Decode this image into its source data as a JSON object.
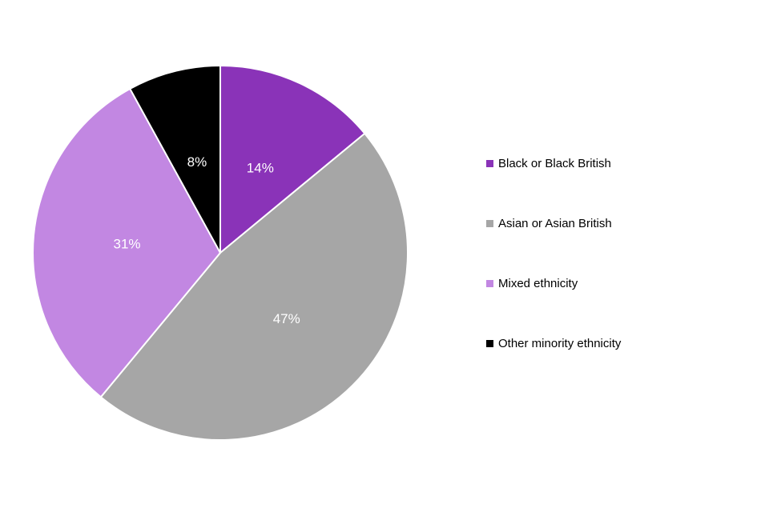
{
  "chart_data": {
    "type": "pie",
    "title": "",
    "categories": [
      "Black or Black British",
      "Asian or Asian British",
      "Mixed ethnicity",
      "Other minority ethnicity"
    ],
    "values": [
      14,
      47,
      31,
      8
    ],
    "labels": [
      "14%",
      "47%",
      "31%",
      "8%"
    ],
    "colors": [
      "#8A33B8",
      "#A6A6A6",
      "#C287E2",
      "#000000"
    ],
    "start_angle_deg": 0,
    "direction": "clockwise",
    "legend_position": "right",
    "data_label_color": "#FFFFFF",
    "slice_border_color": "#FFFFFF"
  }
}
